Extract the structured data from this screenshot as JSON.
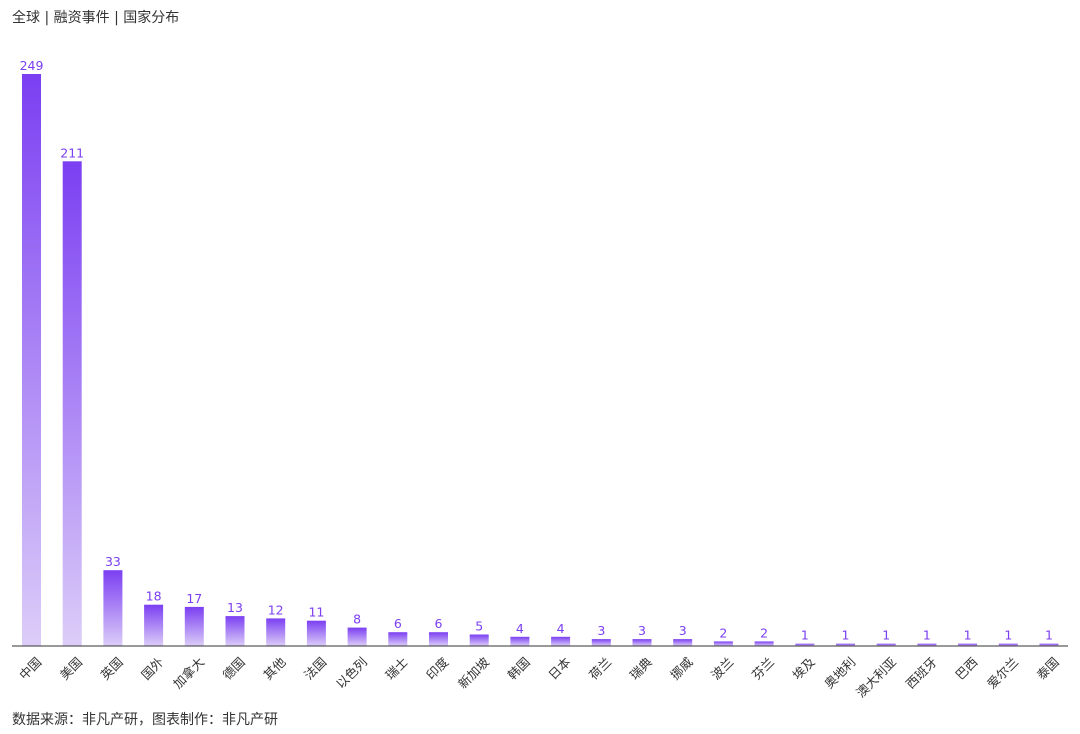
{
  "title": "全球 | 融资事件 | 国家分布",
  "footer": "数据来源：非凡产研，图表制作：非凡产研",
  "colors": {
    "bar_top": "#7b3ff2",
    "bar_bottom": "#dccdf8",
    "value_label": "#7b3ff2",
    "axis": "#333333"
  },
  "chart_data": {
    "type": "bar",
    "categories": [
      "中国",
      "美国",
      "英国",
      "国外",
      "加拿大",
      "德国",
      "其他",
      "法国",
      "以色列",
      "瑞士",
      "印度",
      "新加坡",
      "韩国",
      "日本",
      "荷兰",
      "瑞典",
      "挪威",
      "波兰",
      "芬兰",
      "埃及",
      "奥地利",
      "澳大利亚",
      "西班牙",
      "巴西",
      "爱尔兰",
      "泰国"
    ],
    "values": [
      249,
      211,
      33,
      18,
      17,
      13,
      12,
      11,
      8,
      6,
      6,
      5,
      4,
      4,
      3,
      3,
      3,
      2,
      2,
      1,
      1,
      1,
      1,
      1,
      1,
      1
    ],
    "ylim": [
      0,
      249
    ],
    "grid": false,
    "legend": "none"
  }
}
